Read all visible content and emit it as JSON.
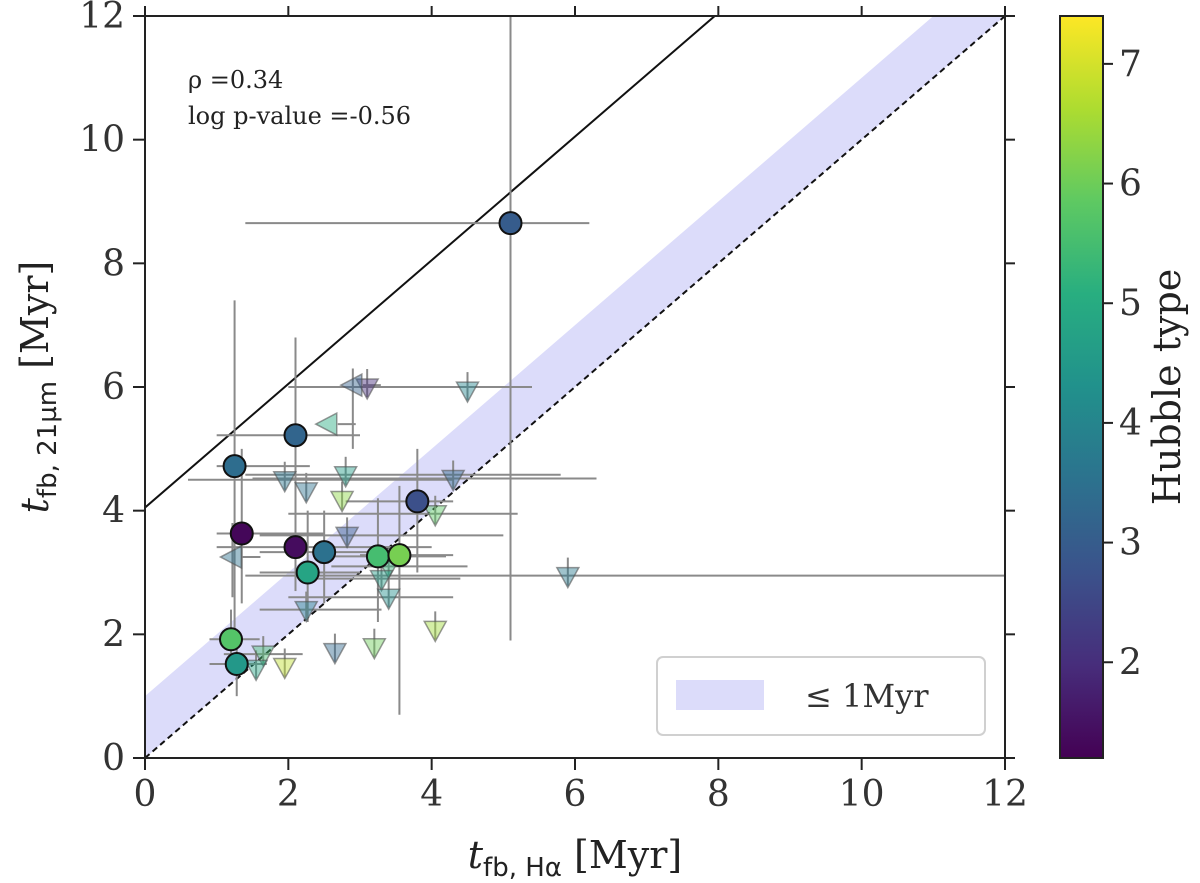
{
  "chart_data": {
    "type": "scatter",
    "xlim": [
      0,
      12
    ],
    "ylim": [
      0,
      12
    ],
    "x_ticks": [
      "0",
      "2",
      "4",
      "6",
      "8",
      "10",
      "12"
    ],
    "y_ticks": [
      "0",
      "2",
      "4",
      "6",
      "8",
      "10",
      "12"
    ],
    "xlabel": {
      "main": "t",
      "sub": "fb, Hα",
      "unit": " [Myr]"
    },
    "ylabel": {
      "main": "t",
      "sub": "fb, 21µm",
      "unit": " [Myr]"
    },
    "annotation": {
      "rho": "ρ =0.34",
      "pvalue": "log p-value =-0.56"
    },
    "legend": {
      "label": "≤ 1Myr"
    },
    "band": {
      "offset_low": 0,
      "offset_high": 1,
      "color": "#dcdcfa"
    },
    "lines": [
      {
        "name": "one-to-one",
        "intercept": 0,
        "slope": 1,
        "style": "dashed"
      },
      {
        "name": "offset-four",
        "intercept": 4.05,
        "slope": 1,
        "style": "solid"
      }
    ],
    "colorbar": {
      "label": "Hubble type",
      "min": 1.2,
      "max": 7.4,
      "ticks": [
        "2",
        "3",
        "4",
        "5",
        "6",
        "7"
      ],
      "tick_values": [
        2,
        3,
        4,
        5,
        6,
        7
      ]
    },
    "detections": [
      {
        "x": 5.1,
        "y": 8.65,
        "hubble": 3.0,
        "xerr": [
          1.4,
          6.2
        ],
        "yerr": [
          1.9,
          12
        ]
      },
      {
        "x": 2.1,
        "y": 5.22,
        "hubble": 3.2,
        "xerr": [
          1.0,
          3.0
        ],
        "yerr": [
          2.8,
          6.8
        ]
      },
      {
        "x": 1.25,
        "y": 4.72,
        "hubble": 3.4,
        "xerr": [
          1.0,
          2.3
        ],
        "yerr": [
          2.0,
          7.4
        ]
      },
      {
        "x": 3.8,
        "y": 4.15,
        "hubble": 2.7,
        "xerr": [
          2.8,
          4.3
        ],
        "yerr": [
          3.0,
          5.0
        ]
      },
      {
        "x": 1.35,
        "y": 3.63,
        "hubble": 1.3,
        "xerr": [
          1.0,
          2.5
        ],
        "yerr": [
          2.5,
          5.0
        ]
      },
      {
        "x": 2.1,
        "y": 3.41,
        "hubble": 1.4,
        "xerr": [
          1.0,
          4.0
        ],
        "yerr": [
          2.7,
          4.5
        ]
      },
      {
        "x": 2.5,
        "y": 3.33,
        "hubble": 3.5,
        "xerr": [
          1.6,
          3.4
        ],
        "yerr": [
          2.5,
          4.0
        ]
      },
      {
        "x": 3.25,
        "y": 3.26,
        "hubble": 5.5,
        "xerr": [
          2.4,
          4.2
        ],
        "yerr": [
          2.2,
          4.2
        ]
      },
      {
        "x": 3.55,
        "y": 3.28,
        "hubble": 6.1,
        "xerr": [
          3.0,
          4.3
        ],
        "yerr": [
          0.7,
          4.4
        ]
      },
      {
        "x": 2.27,
        "y": 3.0,
        "hubble": 4.8,
        "xerr": [
          1.6,
          3.0
        ],
        "yerr": [
          2.2,
          4.0
        ]
      },
      {
        "x": 1.2,
        "y": 1.92,
        "hubble": 5.7,
        "xerr": [
          0.9,
          1.6
        ],
        "yerr": [
          1.6,
          2.4
        ]
      },
      {
        "x": 1.28,
        "y": 1.52,
        "hubble": 4.5,
        "xerr": [
          0.9,
          1.7
        ],
        "yerr": [
          1.0,
          2.0
        ]
      }
    ],
    "upper_limits_y": [
      {
        "x": 3.1,
        "y": 6.0,
        "hubble": 2.0,
        "xerr": [
          2.0,
          5.4
        ]
      },
      {
        "x": 4.5,
        "y": 5.95,
        "hubble": 4.0
      },
      {
        "x": 2.8,
        "y": 4.58,
        "hubble": 4.6,
        "xerr": [
          1.4,
          5.8
        ]
      },
      {
        "x": 1.95,
        "y": 4.5,
        "hubble": 3.6,
        "xerr": [
          0.6,
          4.3
        ]
      },
      {
        "x": 4.3,
        "y": 4.52,
        "hubble": 3.3,
        "xerr": [
          1.5,
          6.3
        ]
      },
      {
        "x": 2.25,
        "y": 4.32,
        "hubble": 3.5
      },
      {
        "x": 2.75,
        "y": 4.18,
        "hubble": 6.3
      },
      {
        "x": 4.05,
        "y": 3.95,
        "hubble": 5.8,
        "xerr": [
          2.0,
          5.2
        ]
      },
      {
        "x": 2.82,
        "y": 3.6,
        "hubble": 3.0,
        "xerr": [
          1.6,
          5.0
        ]
      },
      {
        "x": 3.4,
        "y": 3.1,
        "hubble": 5.2,
        "xerr": [
          2.6,
          4.5
        ]
      },
      {
        "x": 3.3,
        "y": 2.9,
        "hubble": 4.6,
        "xerr": [
          2.3,
          4.4
        ]
      },
      {
        "x": 5.9,
        "y": 2.95,
        "hubble": 3.7,
        "xerr": [
          1.4,
          12
        ]
      },
      {
        "x": 3.4,
        "y": 2.6,
        "hubble": 4.2,
        "xerr": [
          2.0,
          4.3
        ]
      },
      {
        "x": 2.25,
        "y": 2.4,
        "hubble": 3.9,
        "xerr": [
          1.6,
          3.3
        ]
      },
      {
        "x": 3.2,
        "y": 1.8,
        "hubble": 6.0
      },
      {
        "x": 2.65,
        "y": 1.72,
        "hubble": 3.3
      },
      {
        "x": 4.05,
        "y": 2.08,
        "hubble": 6.5
      },
      {
        "x": 1.65,
        "y": 1.68,
        "hubble": 5.5,
        "xerr": [
          1.1,
          2.2
        ]
      },
      {
        "x": 1.95,
        "y": 1.48,
        "hubble": 6.8
      },
      {
        "x": 1.55,
        "y": 1.45,
        "hubble": 4.8
      }
    ],
    "upper_limits_x": [
      {
        "x": 2.9,
        "y": 6.03,
        "hubble": 3.1,
        "yerr": [
          5.0,
          6.3
        ]
      },
      {
        "x": 2.55,
        "y": 5.4,
        "hubble": 5.0
      },
      {
        "x": 1.22,
        "y": 3.25,
        "hubble": 3.5,
        "yerr": [
          2.6,
          3.8
        ]
      }
    ]
  }
}
